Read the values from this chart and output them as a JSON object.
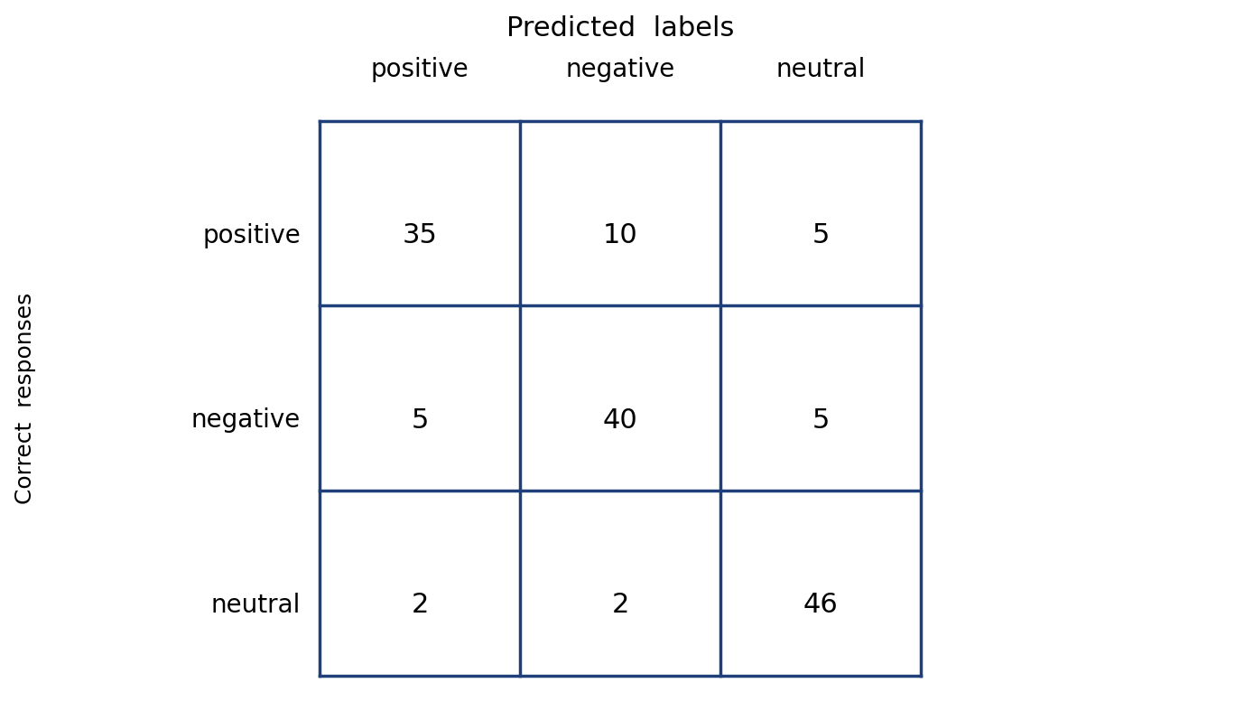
{
  "title": "Predicted  labels",
  "ylabel": "Correct  responses",
  "col_labels": [
    "positive",
    "negative",
    "neutral"
  ],
  "row_labels": [
    "positive",
    "negative",
    "neutral"
  ],
  "matrix": [
    [
      35,
      10,
      5
    ],
    [
      5,
      40,
      5
    ],
    [
      2,
      2,
      46
    ]
  ],
  "grid_color": "#1F3F7A",
  "text_color": "#000000",
  "background_color": "#ffffff",
  "title_fontsize": 22,
  "label_fontsize": 20,
  "cell_fontsize": 22,
  "axis_label_fontsize": 18
}
